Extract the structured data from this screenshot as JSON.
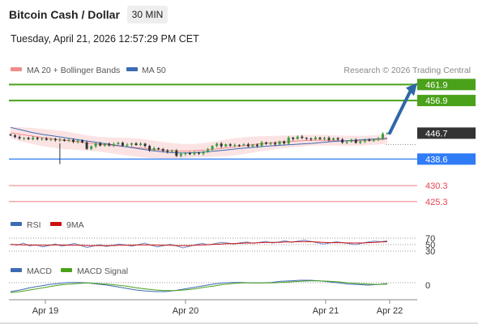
{
  "header": {
    "title": "Bitcoin Cash / Dollar",
    "timeframe": "30 MIN",
    "datetime": "Tuesday, April 21, 2026 12:57:29 PM CET"
  },
  "colors": {
    "green": "#4aa11a",
    "blue": "#2f7cf6",
    "red": "#e8434f",
    "dark": "#333333",
    "arrow": "#2e67a8",
    "ma20": "#f08c8c",
    "ma50": "#3d6bb3",
    "bbfill": "#fbdada"
  },
  "chart_data": [
    {
      "type": "candlestick",
      "legend": [
        {
          "name": "MA 20 + Bollinger Bands",
          "color": "#f08c8c"
        },
        {
          "name": "MA 50",
          "color": "#3d6bb3"
        }
      ],
      "source": "Research © 2026 Trading Central",
      "ylim": [
        423,
        463.5
      ],
      "levels": [
        {
          "label": "461.9",
          "value": 461.9,
          "color": "#4aa11a",
          "style": "line-badge"
        },
        {
          "label": "456.9",
          "value": 456.9,
          "color": "#4aa11a",
          "style": "line-badge"
        },
        {
          "label": "446.7",
          "value": 446.7,
          "color": "#333333",
          "style": "dotted-badge"
        },
        {
          "label": "438.6",
          "value": 438.6,
          "color": "#2f7cf6",
          "style": "line-badge"
        },
        {
          "label": "430.3",
          "value": 430.3,
          "color": "#e8434f",
          "style": "thin-text"
        },
        {
          "label": "425.3",
          "value": 425.3,
          "color": "#e8434f",
          "style": "thin-text"
        }
      ],
      "arrow": {
        "from": 446.7,
        "to": 461.9
      },
      "close_path": [
        446.0,
        445.5,
        445.1,
        445.2,
        444.8,
        445.3,
        444.9,
        445.0,
        444.6,
        444.9,
        444.5,
        444.7,
        444.3,
        444.6,
        444.0,
        444.4,
        443.8,
        441.8,
        442.6,
        443.5,
        442.8,
        443.4,
        442.9,
        443.3,
        443.7,
        442.8,
        443.1,
        443.5,
        443.0,
        443.4,
        442.7,
        441.4,
        442.0,
        441.7,
        441.2,
        440.9,
        441.3,
        439.6,
        440.2,
        440.5,
        440.1,
        440.6,
        440.3,
        440.8,
        441.6,
        442.7,
        443.4,
        442.6,
        443.2,
        442.8,
        443.0,
        442.9,
        443.2,
        442.6,
        443.1,
        442.7,
        443.8,
        443.4,
        443.6,
        443.2,
        444.1,
        443.5,
        445.3,
        444.9,
        445.6,
        445.2,
        445.0,
        444.8,
        445.3,
        444.9,
        445.2,
        444.6,
        445.1,
        444.7,
        443.8,
        444.0,
        444.6,
        443.7,
        444.1,
        444.6,
        444.3,
        444.7,
        445.1,
        446.5,
        446.7
      ],
      "ma20_path": [
        446.8,
        446.3,
        445.8,
        445.3,
        444.9,
        444.5,
        444.1,
        443.7,
        443.3,
        443.0,
        442.7,
        442.4,
        442.1,
        441.7,
        441.4,
        441.2,
        441.1,
        441.2,
        441.4,
        441.7,
        442.1,
        442.5,
        442.9,
        443.3,
        443.6,
        443.9,
        444.1,
        444.3,
        444.5,
        444.5,
        444.4,
        444.3,
        444.3,
        444.4,
        444.6,
        444.9
      ],
      "ma50_path": [
        448.5,
        447.7,
        446.9,
        446.3,
        445.8,
        445.3,
        444.8,
        444.3,
        443.8,
        443.3,
        442.8,
        442.3,
        441.8,
        441.3,
        440.9,
        440.6,
        440.5,
        440.6,
        440.8,
        441.1,
        441.4,
        441.8,
        442.1,
        442.4,
        442.7,
        442.9,
        443.1,
        443.3,
        443.5,
        443.8,
        444.1,
        444.3,
        444.5,
        444.7,
        444.9,
        445.1
      ],
      "bb_width": [
        1.8,
        2.2,
        2.5,
        2.7,
        2.8,
        2.8,
        2.6,
        2.4,
        2.3,
        2.4,
        2.6,
        2.8,
        2.9,
        2.8,
        2.6,
        2.4,
        2.2,
        2.1,
        2.2,
        2.4,
        2.6,
        2.7,
        2.6,
        2.4,
        2.2,
        2.0,
        1.9,
        1.8,
        1.7,
        1.7,
        1.6,
        1.6,
        1.6,
        1.5,
        1.5,
        1.5
      ],
      "x_ticks": [
        "Apr 19",
        "Apr 20",
        "Apr 21",
        "Apr 22"
      ]
    },
    {
      "type": "line",
      "legend": [
        {
          "name": "RSI",
          "color": "#3d6bb3"
        },
        {
          "name": "9MA",
          "color": "#cc1111"
        }
      ],
      "y_ticks": [
        70,
        50,
        30
      ],
      "ylim": [
        20,
        80
      ],
      "rsi": [
        52,
        48,
        55,
        46,
        50,
        43,
        47,
        52,
        45,
        49,
        54,
        47,
        41,
        46,
        50,
        44,
        48,
        52,
        49,
        45,
        50,
        55,
        48,
        43,
        47,
        51,
        46,
        40,
        45,
        50,
        54,
        49,
        53,
        57,
        55,
        52,
        56,
        58,
        54,
        57,
        60,
        55,
        58,
        62,
        57,
        61,
        64,
        60,
        56,
        52,
        55,
        59,
        56,
        53,
        50,
        54,
        58,
        61,
        59,
        62
      ],
      "ma9": [
        50,
        50,
        49,
        49,
        48,
        48,
        48,
        49,
        49,
        48,
        48,
        48,
        47,
        47,
        47,
        47,
        47,
        48,
        48,
        48,
        49,
        49,
        49,
        48,
        48,
        48,
        47,
        47,
        47,
        48,
        49,
        50,
        51,
        52,
        53,
        53,
        54,
        55,
        55,
        56,
        57,
        57,
        57,
        58,
        58,
        59,
        59,
        59,
        58,
        57,
        56,
        56,
        56,
        55,
        55,
        55,
        56,
        57,
        58,
        59
      ]
    },
    {
      "type": "line",
      "legend": [
        {
          "name": "MACD",
          "color": "#3d6bb3"
        },
        {
          "name": "MACD Signal",
          "color": "#4aa11a"
        }
      ],
      "y_ticks": [
        0
      ],
      "ylim": [
        -2.4,
        1.5
      ],
      "macd": [
        -1.2,
        -0.9,
        -0.5,
        -0.2,
        0.1,
        0.3,
        0.5,
        0.5,
        0.4,
        0.2,
        0.0,
        -0.3,
        -0.6,
        -0.9,
        -1.1,
        -1.2,
        -1.2,
        -1.0,
        -0.7,
        -0.4,
        -0.1,
        0.2,
        0.4,
        0.5,
        0.5,
        0.4,
        0.4,
        0.5,
        0.7,
        0.8,
        0.9,
        0.9,
        0.8,
        0.6,
        0.4,
        0.2,
        0.1,
        0.0,
        0.1,
        0.3
      ],
      "signal": [
        -1.4,
        -1.2,
        -0.9,
        -0.6,
        -0.3,
        0.0,
        0.2,
        0.3,
        0.4,
        0.3,
        0.2,
        0.0,
        -0.2,
        -0.5,
        -0.7,
        -0.9,
        -1.0,
        -1.0,
        -0.9,
        -0.7,
        -0.4,
        -0.2,
        0.1,
        0.3,
        0.4,
        0.4,
        0.4,
        0.4,
        0.5,
        0.6,
        0.7,
        0.8,
        0.8,
        0.7,
        0.6,
        0.4,
        0.3,
        0.2,
        0.1,
        0.2
      ]
    }
  ]
}
